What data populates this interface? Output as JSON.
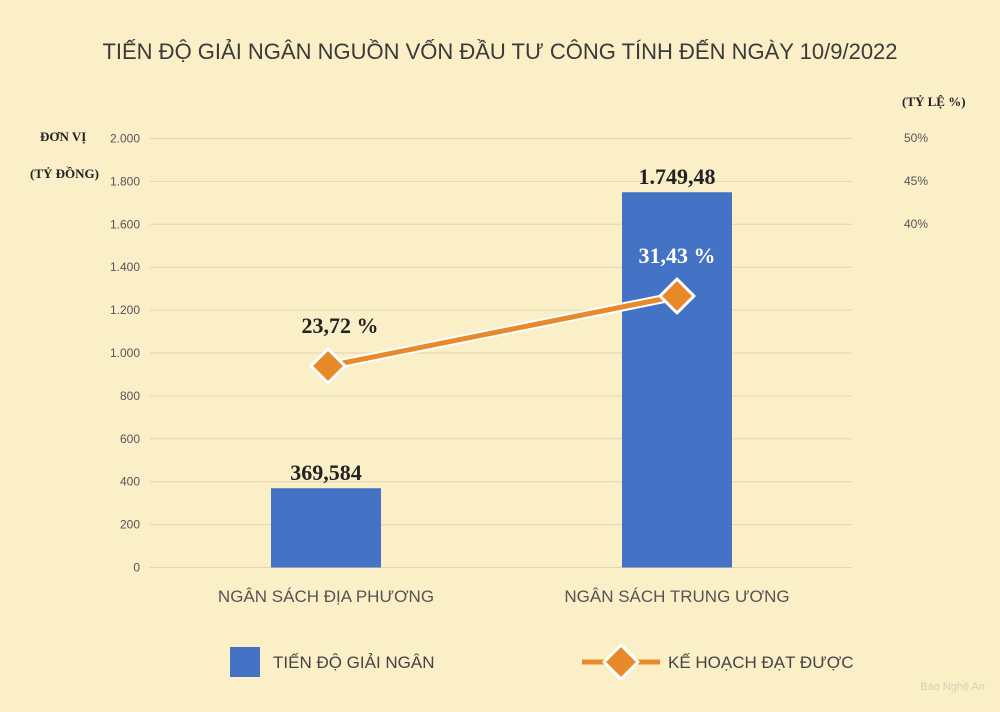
{
  "chart_data": {
    "type": "bar",
    "title": "TIẾN ĐỘ GIẢI NGÂN NGUỒN VỐN ĐẦU TƯ CÔNG TÍNH ĐẾN NGÀY 10/9/2022",
    "ylabel_left_line1": "ĐƠN VỊ",
    "ylabel_left_line2": "(TỶ ĐỒNG)",
    "ylabel_right": "(TỶ LỆ %)",
    "categories": [
      "NGÂN SÁCH ĐỊA PHƯƠNG",
      "NGÂN SÁCH TRUNG ƯƠNG"
    ],
    "ylim": [
      0,
      2000
    ],
    "yticks": [
      0,
      200,
      400,
      600,
      800,
      1000,
      1200,
      1400,
      1600,
      1800,
      2000
    ],
    "ytick_labels": [
      "0",
      "200",
      "400",
      "600",
      "800",
      "1.000",
      "1.200",
      "1.400",
      "1.600",
      "1.800",
      "2.000"
    ],
    "y2ticks": [
      50,
      45,
      40
    ],
    "y2tick_labels": [
      "50%",
      "45%",
      "40%"
    ],
    "series": [
      {
        "name": "TIẾN ĐỘ GIẢI NGÂN",
        "kind": "bar",
        "color": "#4472c4",
        "values": [
          369.584,
          1749.48
        ],
        "labels": [
          "369,584",
          "1.749,48"
        ]
      },
      {
        "name": "KẾ HOẠCH ĐẠT ĐƯỢC",
        "kind": "line",
        "color": "#e8892a",
        "values": [
          23.72,
          31.43
        ],
        "labels": [
          "23,72 %",
          "31,43 %"
        ]
      }
    ],
    "grid": true,
    "legend": "bottom"
  },
  "watermark": "Báo Nghệ An"
}
